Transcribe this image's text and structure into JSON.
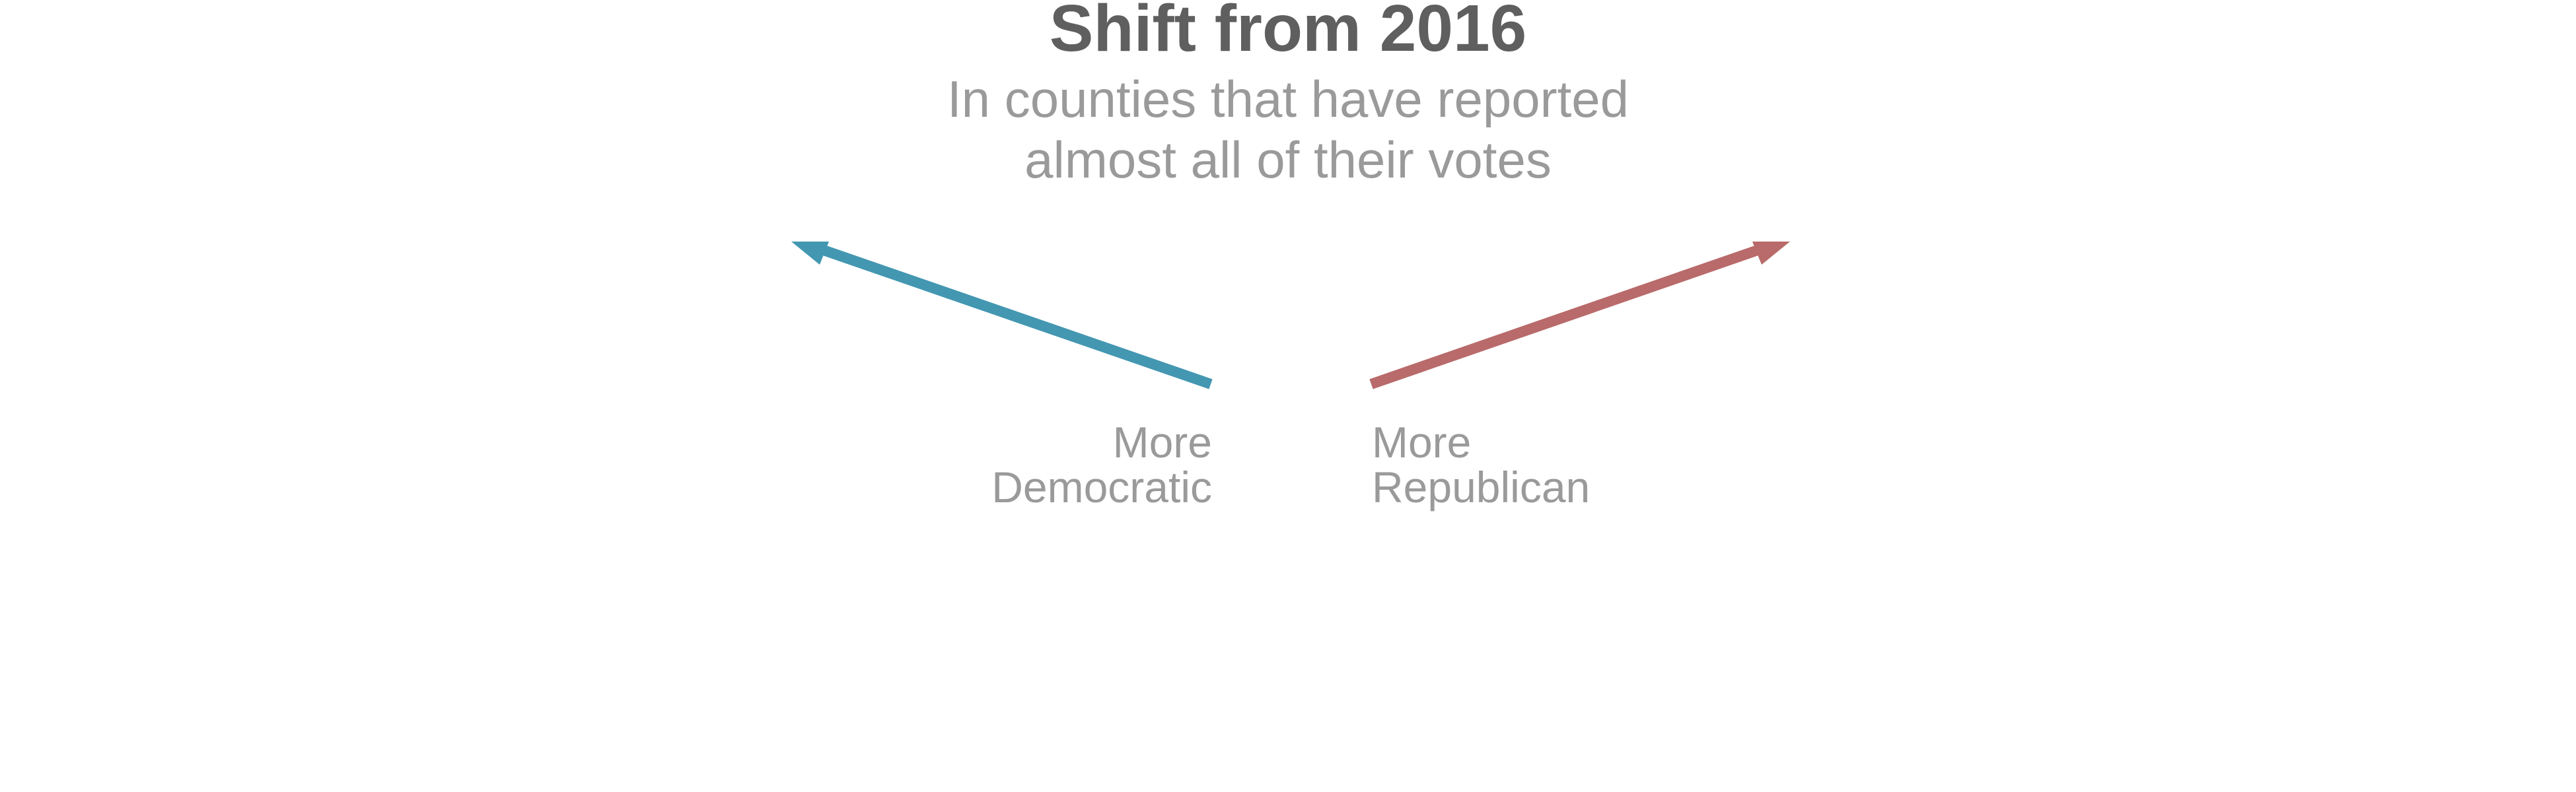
{
  "legend": {
    "title": "Shift from 2016",
    "subtitle_lines": [
      "In counties that have reported",
      "almost all of their votes"
    ],
    "democratic": {
      "label_lines": [
        "More",
        "Democratic"
      ],
      "color": "#4397b1",
      "icon": "arrow-up-left-icon"
    },
    "republican": {
      "label_lines": [
        "More",
        "Republican"
      ],
      "color": "#b96a6a",
      "icon": "arrow-up-right-icon"
    }
  }
}
